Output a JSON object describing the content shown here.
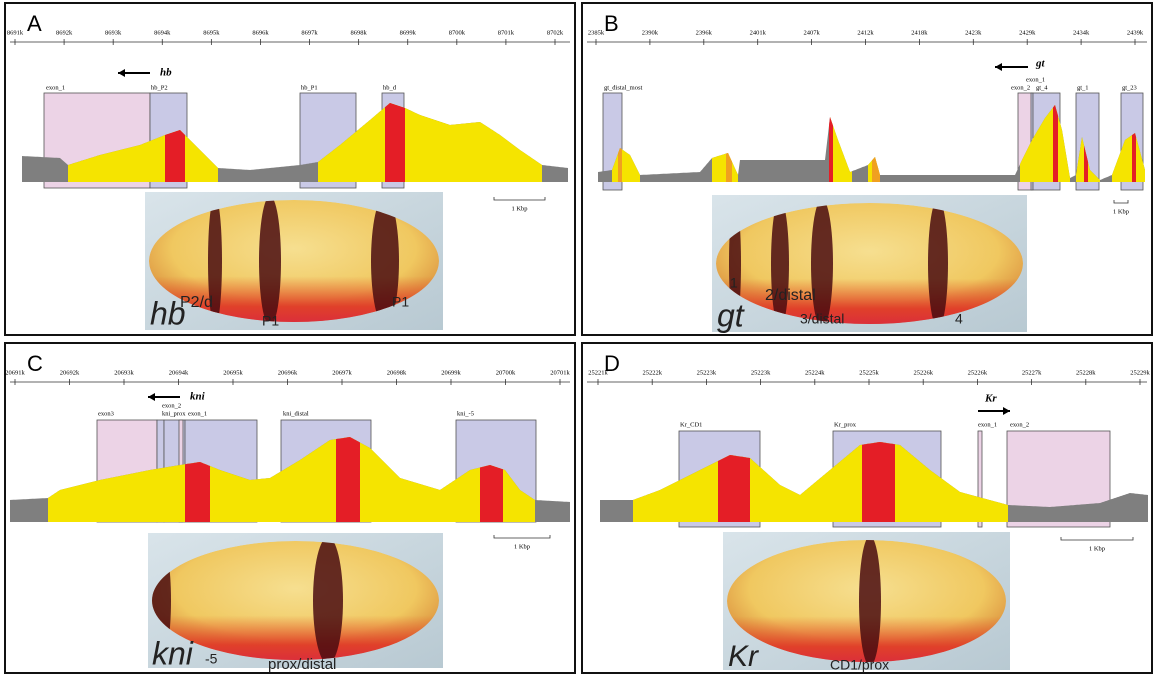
{
  "panels": [
    {
      "letter": "A",
      "axis_ticks": [
        "8691k",
        "8692k",
        "8693k",
        "8694k",
        "8695k",
        "8696k",
        "8697k",
        "8698k",
        "8699k",
        "8700k",
        "8701k",
        "8702k"
      ],
      "gene": "hb",
      "boxes": [
        "exon_1",
        "hb_P2",
        "hb_P1",
        "hb_d"
      ],
      "scale": "1 Kbp",
      "embryo_labels": [
        "hb",
        "P2/d",
        "P1",
        "P1"
      ]
    },
    {
      "letter": "B",
      "axis_ticks": [
        "2385k",
        "2390k",
        "2396k",
        "2401k",
        "2407k",
        "2412k",
        "2418k",
        "2423k",
        "2429k",
        "2434k",
        "2439k"
      ],
      "gene": "gt",
      "boxes": [
        "gt_distal_most",
        "exon_2",
        "exon_1",
        "gt_4",
        "gt_1",
        "gt_23"
      ],
      "scale": "1 Kbp",
      "embryo_labels": [
        "gt",
        "2/distal",
        "1",
        "3/distal",
        "4"
      ]
    },
    {
      "letter": "C",
      "axis_ticks": [
        "20691k",
        "20692k",
        "20693k",
        "20694k",
        "20695k",
        "20696k",
        "20697k",
        "20698k",
        "20699k",
        "20700k",
        "20701k"
      ],
      "gene": "kni",
      "boxes": [
        "exon3",
        "exon_2",
        "kni_prox",
        "exon_1",
        "kni_distal",
        "kni_-5"
      ],
      "scale": "1 Kbp",
      "embryo_labels": [
        "kni",
        "-5",
        "prox/distal"
      ]
    },
    {
      "letter": "D",
      "axis_ticks": [
        "25221k",
        "25222k",
        "25223k",
        "25223k",
        "25224k",
        "25225k",
        "25226k",
        "25226k",
        "25227k",
        "25228k",
        "25229k"
      ],
      "gene": "Kr",
      "boxes": [
        "Kr_CD1",
        "Kr_prox",
        "exon_1",
        "exon_2"
      ],
      "scale": "1 Kbp",
      "embryo_labels": [
        "Kr",
        "CD1/prox"
      ]
    }
  ]
}
